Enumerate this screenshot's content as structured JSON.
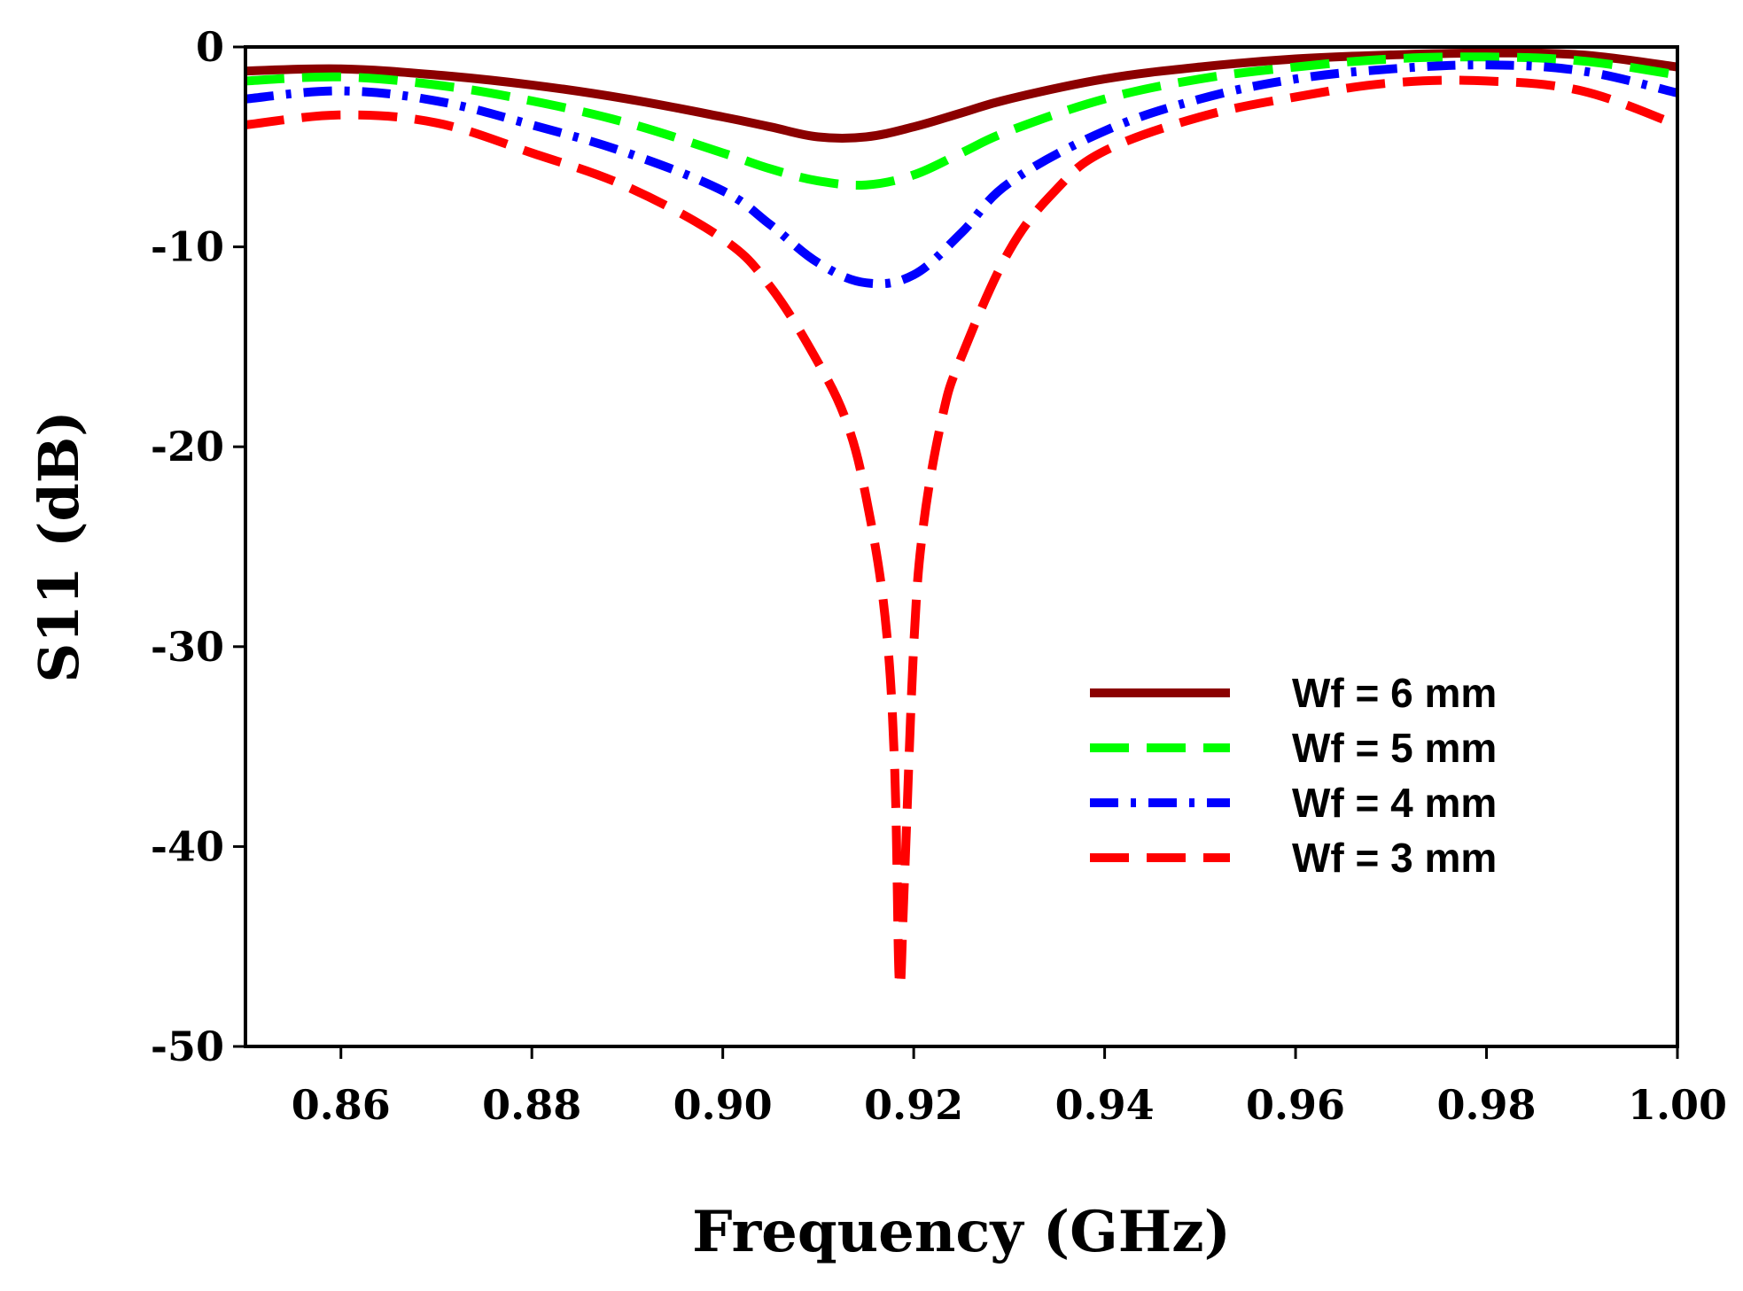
{
  "chart_data": {
    "type": "line",
    "xlabel": "Frequency (GHz)",
    "ylabel": "S11 (dB)",
    "xlim": [
      0.85,
      1.0
    ],
    "ylim": [
      -50,
      0
    ],
    "xticks": [
      0.86,
      0.88,
      0.9,
      0.92,
      0.94,
      0.96,
      0.98,
      1.0
    ],
    "xtick_labels": [
      "0.86",
      "0.88",
      "0.90",
      "0.92",
      "0.94",
      "0.96",
      "0.98",
      "1.00"
    ],
    "yticks": [
      0,
      -10,
      -20,
      -30,
      -40,
      -50
    ],
    "ytick_labels": [
      "0",
      "-10",
      "-20",
      "-30",
      "-40",
      "-50"
    ],
    "grid": false,
    "legend_position": "center-right",
    "series": [
      {
        "name": "Wf = 6 mm",
        "color": "#8B0000",
        "style": "solid",
        "x": [
          0.85,
          0.86,
          0.87,
          0.88,
          0.89,
          0.9,
          0.905,
          0.91,
          0.915,
          0.92,
          0.925,
          0.93,
          0.94,
          0.95,
          0.96,
          0.97,
          0.98,
          0.99,
          1.0
        ],
        "y": [
          -1.2,
          -1.1,
          -1.4,
          -1.9,
          -2.6,
          -3.5,
          -4.0,
          -4.5,
          -4.5,
          -4.0,
          -3.3,
          -2.6,
          -1.6,
          -1.0,
          -0.6,
          -0.4,
          -0.3,
          -0.4,
          -1.0
        ]
      },
      {
        "name": "Wf = 5 mm",
        "color": "#00FF00",
        "style": "dashed",
        "x": [
          0.85,
          0.86,
          0.87,
          0.88,
          0.89,
          0.9,
          0.905,
          0.91,
          0.915,
          0.92,
          0.925,
          0.93,
          0.94,
          0.95,
          0.96,
          0.97,
          0.98,
          0.99,
          1.0
        ],
        "y": [
          -1.7,
          -1.5,
          -1.9,
          -2.7,
          -3.8,
          -5.3,
          -6.1,
          -6.7,
          -6.9,
          -6.4,
          -5.3,
          -4.2,
          -2.6,
          -1.6,
          -1.0,
          -0.6,
          -0.5,
          -0.7,
          -1.4
        ]
      },
      {
        "name": "Wf = 4 mm",
        "color": "#0000FF",
        "style": "dashdot",
        "x": [
          0.85,
          0.86,
          0.87,
          0.88,
          0.89,
          0.9,
          0.905,
          0.91,
          0.915,
          0.92,
          0.925,
          0.93,
          0.94,
          0.95,
          0.96,
          0.97,
          0.98,
          0.99,
          1.0
        ],
        "y": [
          -2.6,
          -2.2,
          -2.7,
          -3.9,
          -5.3,
          -7.2,
          -8.9,
          -10.8,
          -11.8,
          -11.4,
          -9.3,
          -6.8,
          -4.2,
          -2.6,
          -1.6,
          -1.1,
          -0.9,
          -1.2,
          -2.3
        ]
      },
      {
        "name": "Wf = 3 mm",
        "color": "#FF0000",
        "style": "dashed",
        "x": [
          0.85,
          0.86,
          0.87,
          0.88,
          0.89,
          0.9,
          0.905,
          0.91,
          0.913,
          0.915,
          0.917,
          0.918,
          0.9185,
          0.919,
          0.92,
          0.921,
          0.923,
          0.925,
          0.93,
          0.935,
          0.94,
          0.95,
          0.96,
          0.97,
          0.98,
          0.99,
          1.0
        ],
        "y": [
          -3.9,
          -3.4,
          -3.8,
          -5.3,
          -7.0,
          -9.6,
          -12.0,
          -15.8,
          -18.8,
          -22.5,
          -28.5,
          -36.0,
          -46.8,
          -42.0,
          -30.0,
          -24.0,
          -18.5,
          -15.5,
          -10.2,
          -7.1,
          -5.2,
          -3.5,
          -2.5,
          -1.8,
          -1.7,
          -2.2,
          -3.9
        ]
      }
    ]
  }
}
